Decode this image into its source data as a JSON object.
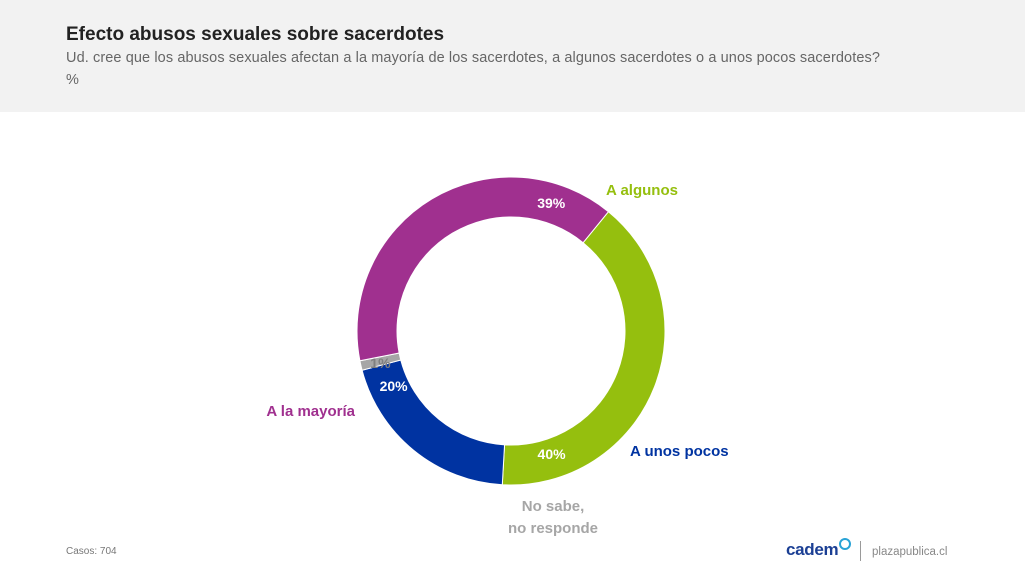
{
  "header": {
    "title": "Efecto abusos sexuales sobre sacerdotes",
    "subtitle": "Ud. cree que los abusos sexuales afectan a la mayoría de los sacerdotes, a algunos sacerdotes o a unos pocos sacerdotes?",
    "unit": "%"
  },
  "chart_data": {
    "type": "pie",
    "variant": "donut",
    "title": "Efecto abusos sexuales sobre sacerdotes",
    "unit": "%",
    "slices": [
      {
        "name": "A algunos",
        "value": 40,
        "label": "40%",
        "color": "#95bf0e",
        "label_color": "#95bf0e"
      },
      {
        "name": "A unos pocos",
        "value": 20,
        "label": "20%",
        "color": "#0033a1",
        "label_color": "#0033a1"
      },
      {
        "name": "No sabe,\nno responde",
        "value": 1,
        "label": "1%",
        "color": "#a6a6a6",
        "label_color": "#a6a6a6"
      },
      {
        "name": "A la mayoría",
        "value": 39,
        "label": "39%",
        "color": "#a0308f",
        "label_color": "#a0308f"
      }
    ]
  },
  "footer": {
    "cases": "Casos: 704",
    "brand": "cadem",
    "site": "plazapublica.cl"
  }
}
